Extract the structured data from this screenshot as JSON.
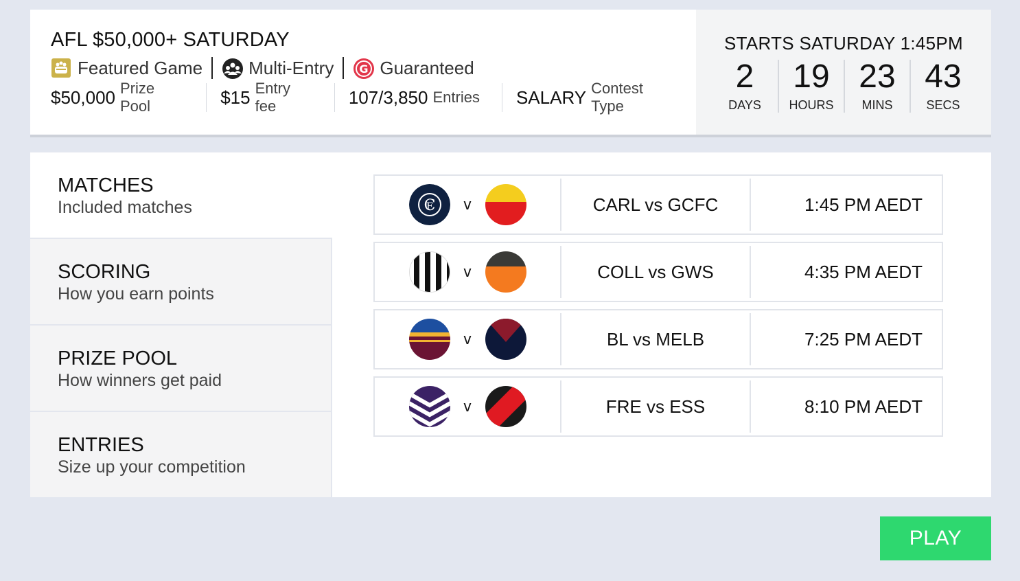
{
  "contest": {
    "title": "AFL $50,000+ SATURDAY",
    "badges": {
      "featured": "Featured Game",
      "multi": "Multi-Entry",
      "guaranteed": "Guaranteed"
    },
    "stats": [
      {
        "value": "$50,000",
        "label": "Prize Pool"
      },
      {
        "value": "$15",
        "label": "Entry fee"
      },
      {
        "value": "107/3,850",
        "label": "Entries"
      },
      {
        "value": "SALARY",
        "label": "Contest Type"
      }
    ]
  },
  "countdown": {
    "starts": "STARTS SATURDAY 1:45PM",
    "units": [
      {
        "n": "2",
        "u": "DAYS"
      },
      {
        "n": "19",
        "u": "HOURS"
      },
      {
        "n": "23",
        "u": "MINS"
      },
      {
        "n": "43",
        "u": "SECS"
      }
    ]
  },
  "sidebar": [
    {
      "h": "MATCHES",
      "s": "Included matches"
    },
    {
      "h": "SCORING",
      "s": "How you earn points"
    },
    {
      "h": "PRIZE POOL",
      "s": "How winners get paid"
    },
    {
      "h": "ENTRIES",
      "s": "Size up your competition"
    }
  ],
  "matches": [
    {
      "name": "CARL vs GCFC",
      "time": "1:45 PM AEDT",
      "home_icon": "carlton-logo-icon",
      "away_icon": "gold-coast-logo-icon"
    },
    {
      "name": "COLL vs GWS",
      "time": "4:35 PM AEDT",
      "home_icon": "collingwood-logo-icon",
      "away_icon": "gws-logo-icon"
    },
    {
      "name": "BL vs MELB",
      "time": "7:25 PM AEDT",
      "home_icon": "brisbane-logo-icon",
      "away_icon": "melbourne-logo-icon"
    },
    {
      "name": "FRE vs ESS",
      "time": "8:10 PM AEDT",
      "home_icon": "fremantle-logo-icon",
      "away_icon": "essendon-logo-icon"
    }
  ],
  "vs": "v",
  "play_label": "PLAY",
  "colors": {
    "play": "#2ed86f",
    "background": "#e3e7f0"
  }
}
